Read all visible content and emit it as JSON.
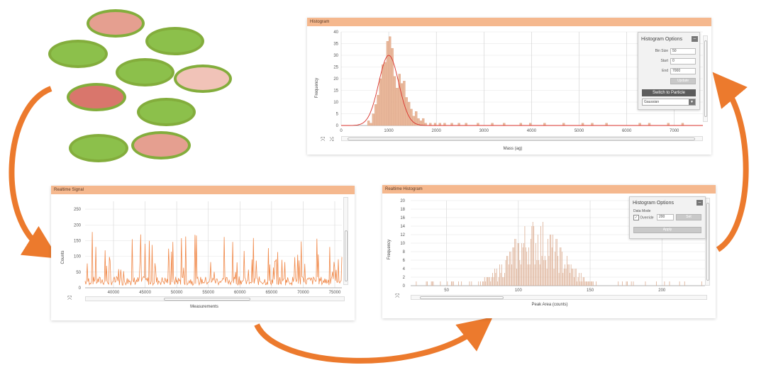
{
  "colors": {
    "accent_orange": "#ec7a2d",
    "title_bar": "#f5b88e",
    "cell_green": "#8dc04a",
    "cell_border": "#83ad3c",
    "bar_fill": "#e9b79a",
    "signal_line": "#f0894a",
    "fit_curve": "#d9312b"
  },
  "cells": [
    {
      "fill": "#e59f90"
    },
    {
      "fill": "#8cc04b"
    },
    {
      "fill": "#8cc04b"
    },
    {
      "fill": "#8cc04b"
    },
    {
      "fill": "#f1c3b8"
    },
    {
      "fill": "#d9766c"
    },
    {
      "fill": "#8cc04b"
    },
    {
      "fill": "#8cc04b"
    },
    {
      "fill": "#e59f90"
    }
  ],
  "panel_top": {
    "title": "Histogram",
    "ylabel": "Frequency",
    "xlabel": "Mass (ag)",
    "options": {
      "title": "Histogram Options",
      "bin_size_label": "Bin Size",
      "bin_size_value": "50",
      "start_label": "Start",
      "start_value": "0",
      "end_label": "End",
      "end_value": "7000",
      "update_button": "Update",
      "switch_button": "Switch to Particle",
      "fit_select": "Gaussian"
    }
  },
  "panel_left": {
    "title": "Realtime Signal",
    "ylabel": "Counts",
    "xlabel": "Measurements"
  },
  "panel_right": {
    "title": "Realtime Histogram",
    "ylabel": "Frequency",
    "xlabel": "Peak Area (counts)",
    "options": {
      "title": "Histogram Options",
      "group_label": "Data Mode",
      "override_label": "Override",
      "override_value": "200",
      "set_button": "Set",
      "apply_button": "Apply"
    }
  },
  "chart_data": [
    {
      "type": "bar",
      "title": "Histogram",
      "xlabel": "Mass (ag)",
      "ylabel": "Frequency",
      "xlim": [
        0,
        7600
      ],
      "ylim": [
        0,
        40
      ],
      "x_ticks": [
        "0",
        "1000",
        "2000",
        "3000",
        "4000",
        "5000",
        "6000",
        "7000"
      ],
      "y_ticks": [
        "0",
        "5",
        "10",
        "15",
        "20",
        "25",
        "30",
        "35",
        "40"
      ],
      "bins": [
        [
          575,
          2
        ],
        [
          625,
          1
        ],
        [
          675,
          5
        ],
        [
          725,
          9
        ],
        [
          775,
          13
        ],
        [
          825,
          20
        ],
        [
          875,
          26
        ],
        [
          925,
          27
        ],
        [
          975,
          36
        ],
        [
          1025,
          38
        ],
        [
          1075,
          33
        ],
        [
          1125,
          21
        ],
        [
          1175,
          16
        ],
        [
          1225,
          22
        ],
        [
          1275,
          18
        ],
        [
          1325,
          19
        ],
        [
          1375,
          12
        ],
        [
          1425,
          10
        ],
        [
          1475,
          7
        ],
        [
          1525,
          4
        ],
        [
          1575,
          6
        ],
        [
          1625,
          3
        ],
        [
          1675,
          2
        ],
        [
          1725,
          3
        ],
        [
          1775,
          1
        ],
        [
          1875,
          1
        ],
        [
          1975,
          1
        ],
        [
          2075,
          1
        ],
        [
          2175,
          1
        ],
        [
          2325,
          1
        ],
        [
          2475,
          1
        ],
        [
          2625,
          1
        ],
        [
          2875,
          1
        ],
        [
          3175,
          1
        ],
        [
          3425,
          1
        ],
        [
          3775,
          1
        ],
        [
          3975,
          1
        ],
        [
          4275,
          1
        ],
        [
          4675,
          1
        ],
        [
          5075,
          1
        ],
        [
          5275,
          1
        ],
        [
          5575,
          1
        ],
        [
          6275,
          1
        ],
        [
          6475,
          1
        ],
        [
          6875,
          1
        ],
        [
          7175,
          1
        ]
      ],
      "fit": {
        "type": "gaussian",
        "mean": 1000,
        "sd": 210,
        "peak": 30
      }
    },
    {
      "type": "line",
      "title": "Realtime Signal",
      "xlabel": "Measurements",
      "ylabel": "Counts",
      "ylim": [
        0,
        275
      ],
      "x_ticks": [
        "40000",
        "45000",
        "50000",
        "55000",
        "60000",
        "65000",
        "70000",
        "75000"
      ],
      "y_ticks": [
        "0",
        "50",
        "100",
        "150",
        "200",
        "250"
      ]
    },
    {
      "type": "bar",
      "title": "Realtime Histogram",
      "xlabel": "Peak Area (counts)",
      "ylabel": "Frequency",
      "xlim": [
        25,
        230
      ],
      "ylim": [
        0,
        20
      ],
      "x_ticks": [
        "50",
        "100",
        "150",
        "200"
      ],
      "y_ticks": [
        "0",
        "2",
        "4",
        "6",
        "8",
        "10",
        "12",
        "14",
        "16",
        "18",
        "20"
      ]
    }
  ]
}
